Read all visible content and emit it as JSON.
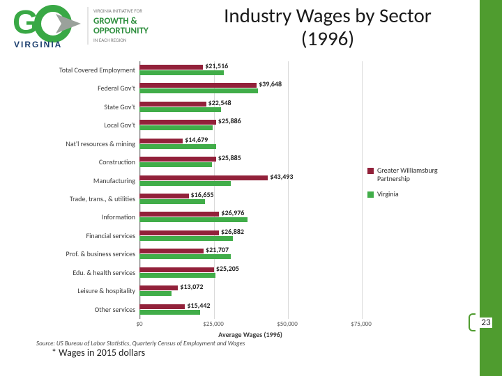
{
  "page": {
    "title": "Industry Wages by Sector (1996)",
    "number": "23",
    "footnote": "* Wages in 2015 dollars"
  },
  "logo": {
    "go_color": "#39a845",
    "arrow_color": "#9aa19b",
    "virginia_color": "#1a3d6d",
    "virginia_text": "VIRGINIA",
    "top_text": "VIRGINIA INITIATIVE FOR",
    "growth_text": "GROWTH &",
    "opp_text": "OPPORTUNITY",
    "bottom_text": "IN EACH REGION",
    "text_green": "#2f8f3f"
  },
  "chart": {
    "type": "bar",
    "x_axis": {
      "title": "Average Wages (1996)",
      "min": 0,
      "max": 75000,
      "ticks": [
        0,
        25000,
        50000,
        75000
      ],
      "tick_labels": [
        "$0",
        "$25,000",
        "$50,000",
        "$75,000"
      ]
    },
    "grid_color": "#d9d9d9",
    "axis_color": "#7f7f7f",
    "series": [
      {
        "name": "Greater Williamsburg Partnership",
        "color": "#92213a",
        "labeled": true
      },
      {
        "name": "Virginia",
        "color": "#41ad49",
        "labeled": false
      }
    ],
    "categories": [
      {
        "label": "Total Covered Employment",
        "values": [
          21516,
          28500
        ],
        "value_label": "$21,516"
      },
      {
        "label": "Federal Gov't",
        "values": [
          39648,
          40200
        ],
        "value_label": "$39,648"
      },
      {
        "label": "State Gov't",
        "values": [
          22548,
          27500
        ],
        "value_label": "$22,548"
      },
      {
        "label": "Local Gov't",
        "values": [
          25886,
          24800
        ],
        "value_label": "$25,886"
      },
      {
        "label": "Nat'l resources & mining",
        "values": [
          14679,
          26000
        ],
        "value_label": "$14,679"
      },
      {
        "label": "Construction",
        "values": [
          25885,
          24500
        ],
        "value_label": "$25,885"
      },
      {
        "label": "Manufacturing",
        "values": [
          43493,
          31000
        ],
        "value_label": "$43,493"
      },
      {
        "label": "Trade, trans., & utilities",
        "values": [
          16655,
          22200
        ],
        "value_label": "$16,655"
      },
      {
        "label": "Information",
        "values": [
          26976,
          36500
        ],
        "value_label": "$26,976"
      },
      {
        "label": "Financial services",
        "values": [
          26882,
          31500
        ],
        "value_label": "$26,882"
      },
      {
        "label": "Prof. & business services",
        "values": [
          21707,
          31000
        ],
        "value_label": "$21,707"
      },
      {
        "label": "Edu. & health services",
        "values": [
          25205,
          25600
        ],
        "value_label": "$25,205"
      },
      {
        "label": "Leisure & hospitality",
        "values": [
          13072,
          10800
        ],
        "value_label": "$13,072"
      },
      {
        "label": "Other services",
        "values": [
          15442,
          20500
        ],
        "value_label": "$15,442"
      }
    ],
    "source": "Source: US Bureau of Labor Statistics, Quarterly Census of Employment and Wages"
  }
}
